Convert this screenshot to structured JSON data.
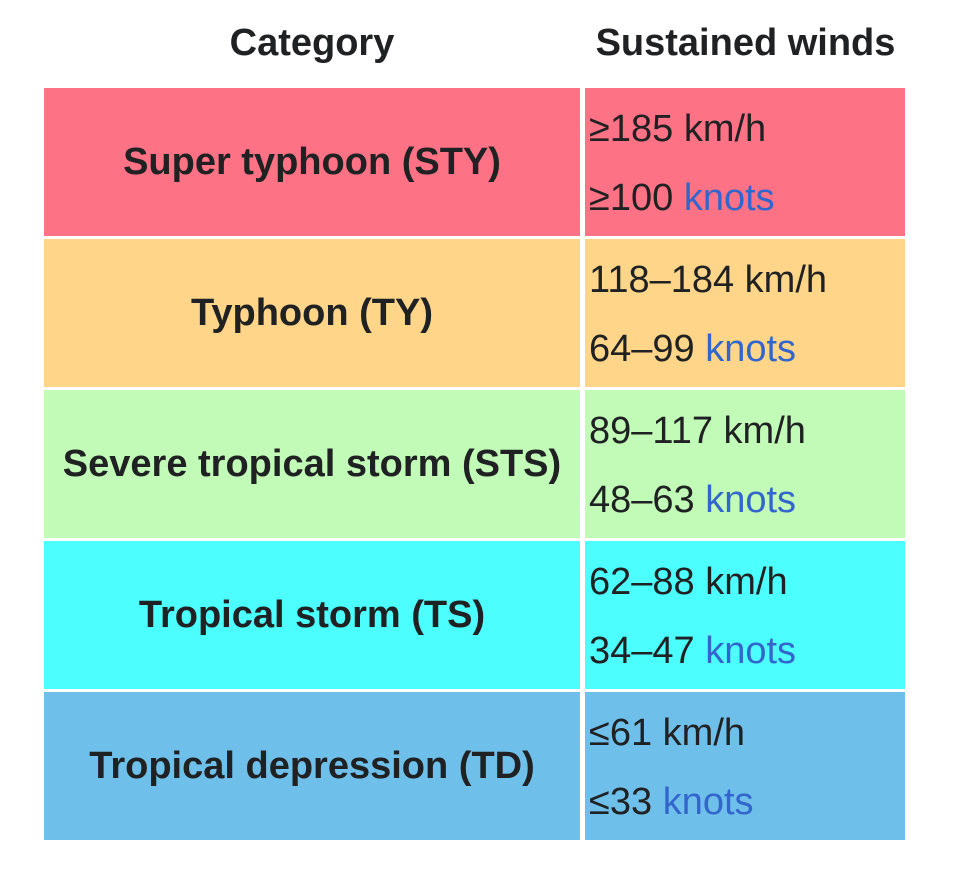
{
  "header": {
    "category_label": "Category",
    "winds_label": "Sustained winds"
  },
  "rows": [
    {
      "category": "Super typhoon (STY)",
      "kmh": "≥185 km/h",
      "knots_value": "≥100",
      "knots_unit": "knots",
      "color": "#fe7285"
    },
    {
      "category": "Typhoon (TY)",
      "kmh": "118–184 km/h",
      "knots_value": "64–99",
      "knots_unit": "knots",
      "color": "#ffd58a"
    },
    {
      "category": "Severe tropical storm (STS)",
      "kmh": "89–117 km/h",
      "knots_value": "48–63",
      "knots_unit": "knots",
      "color": "#c1fbb7"
    },
    {
      "category": "Tropical storm (TS)",
      "kmh": "62–88 km/h",
      "knots_value": "34–47",
      "knots_unit": "knots",
      "color": "#4cfefe"
    },
    {
      "category": "Tropical depression (TD)",
      "kmh": "≤61 km/h",
      "knots_value": "≤33",
      "knots_unit": "knots",
      "color": "#6ebfea"
    }
  ],
  "colors": {
    "text": "#202122",
    "link": "#3366cc"
  }
}
